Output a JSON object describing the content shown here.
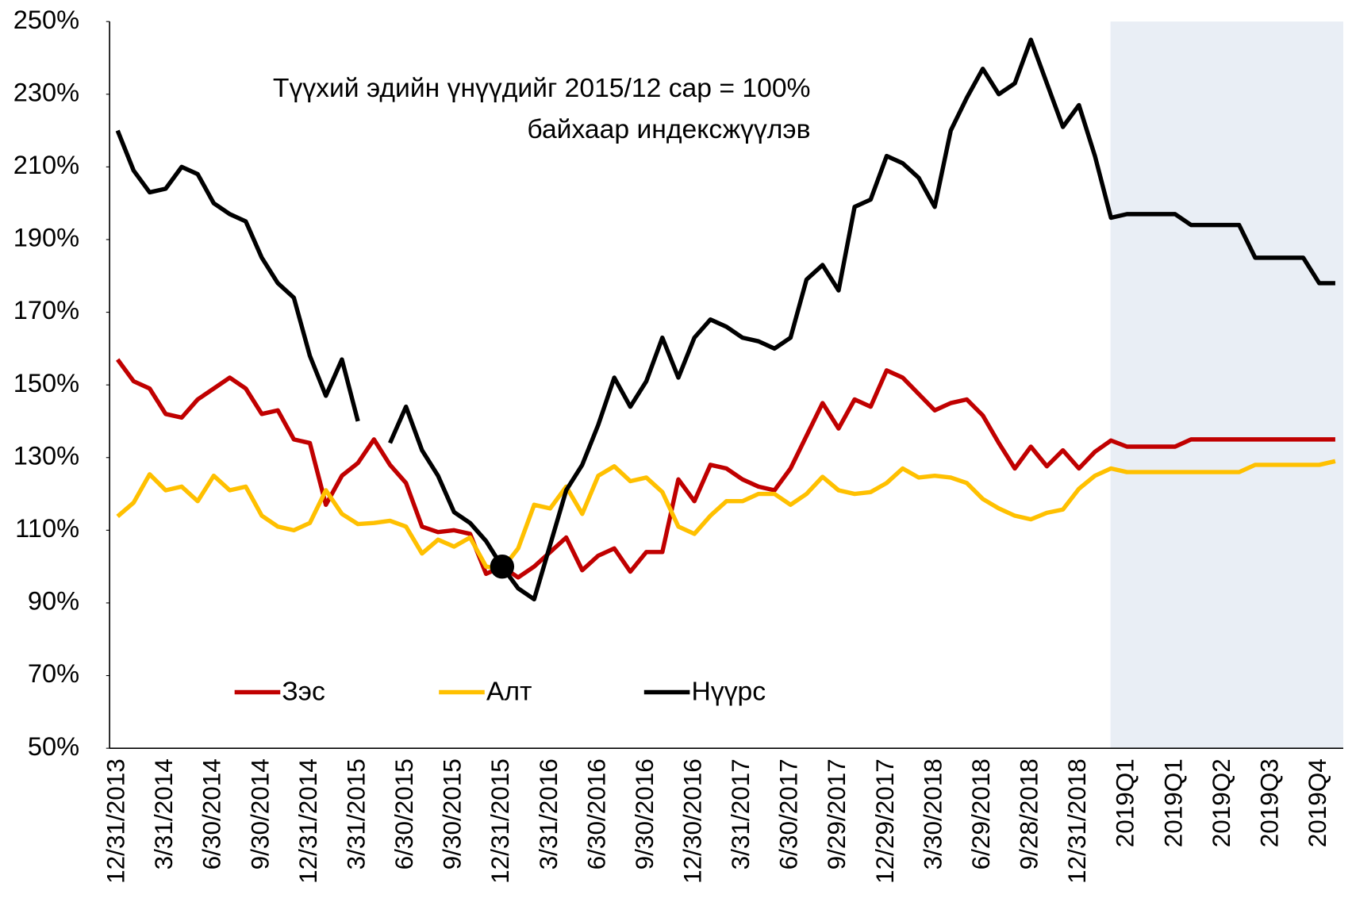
{
  "chart_data": {
    "type": "line",
    "annotation": [
      "Түүхий эдийн үнүүдийг 2015/12 сар = 100%",
      "байхаар индексжүүлэв"
    ],
    "categories": [
      "12/31/2013",
      null,
      null,
      "3/31/2014",
      null,
      null,
      "6/30/2014",
      null,
      null,
      "9/30/2014",
      null,
      null,
      "12/31/2014",
      null,
      null,
      "3/31/2015",
      null,
      null,
      "6/30/2015",
      null,
      null,
      "9/30/2015",
      null,
      null,
      "12/31/2015",
      null,
      null,
      "3/31/2016",
      null,
      null,
      "6/30/2016",
      null,
      null,
      "9/30/2016",
      null,
      null,
      "12/30/2016",
      null,
      null,
      "3/31/2017",
      null,
      null,
      "6/30/2017",
      null,
      null,
      "9/29/2017",
      null,
      null,
      "12/29/2017",
      null,
      null,
      "3/30/2018",
      null,
      null,
      "6/29/2018",
      null,
      null,
      "9/28/2018",
      null,
      null,
      "12/31/2018",
      null,
      null,
      "2019Q1",
      null,
      null,
      "2019Q1",
      null,
      null,
      "2019Q2",
      null,
      null,
      "2019Q3",
      null,
      null,
      "2019Q4",
      null
    ],
    "series": [
      {
        "name": "Зэс",
        "color": "#c00000",
        "values": [
          157,
          151,
          149,
          142,
          141,
          146,
          149,
          152,
          149,
          142,
          143,
          135,
          134,
          117,
          125,
          128.5,
          135,
          128,
          123,
          111,
          109.5,
          110,
          109,
          98,
          100,
          97,
          100,
          104,
          108,
          99,
          103,
          105,
          98.6,
          104,
          104,
          124,
          118,
          128,
          127,
          124,
          122,
          121,
          127,
          136,
          145,
          138,
          146,
          144,
          154,
          152,
          147.5,
          143,
          145,
          146,
          141.6,
          134,
          127,
          133,
          127.6,
          132,
          127,
          131.6,
          134.7,
          133,
          133,
          133,
          133,
          135,
          135,
          135,
          135,
          135,
          135,
          135,
          135,
          135,
          135
        ]
      },
      {
        "name": "Алт",
        "color": "#ffc000",
        "values": [
          113.8,
          117.6,
          125.4,
          121,
          122,
          118,
          125,
          121,
          122,
          114,
          111,
          110,
          112,
          121,
          114.5,
          111.7,
          112,
          112.6,
          111,
          103.6,
          107.4,
          105.5,
          108,
          100,
          99.3,
          105,
          117,
          116,
          122,
          114.5,
          125,
          127.6,
          123.5,
          124.5,
          120.5,
          111,
          109,
          114,
          118,
          118,
          120,
          120,
          117,
          120,
          124.7,
          121,
          120,
          120.5,
          123,
          127,
          124.5,
          125,
          124.5,
          123,
          118.6,
          116,
          114,
          113,
          114.8,
          115.7,
          121.4,
          125,
          127,
          126,
          126,
          126,
          126,
          126,
          126,
          126,
          126,
          128,
          128,
          128,
          128,
          128,
          129
        ]
      },
      {
        "name": "Нүүрс",
        "color": "#000000",
        "values": [
          220,
          209,
          203,
          204,
          210,
          208,
          200,
          197,
          195,
          185,
          178,
          174,
          158,
          147,
          157,
          140,
          null,
          134,
          144,
          132,
          125,
          115,
          112,
          107,
          100,
          94,
          91,
          106,
          121,
          128,
          139,
          152,
          144,
          151,
          163,
          152,
          163,
          168,
          166,
          163,
          162,
          160,
          163,
          179,
          183,
          176,
          199,
          201,
          213,
          211,
          207,
          199,
          220,
          229,
          237,
          230,
          233,
          245,
          233,
          221,
          227,
          213,
          196,
          197,
          197,
          197,
          197,
          194,
          194,
          194,
          194,
          185,
          185,
          185,
          185,
          178,
          178
        ]
      }
    ],
    "highlight_index": 24,
    "ylim": [
      50,
      250
    ],
    "yticks": [
      {
        "value": 50,
        "label": "50%"
      },
      {
        "value": 70,
        "label": "70%"
      },
      {
        "value": 90,
        "label": "90%"
      },
      {
        "value": 110,
        "label": "110%"
      },
      {
        "value": 130,
        "label": "130%"
      },
      {
        "value": 150,
        "label": "150%"
      },
      {
        "value": 170,
        "label": "170%"
      },
      {
        "value": 190,
        "label": "190%"
      },
      {
        "value": 210,
        "label": "210%"
      },
      {
        "value": 230,
        "label": "230%"
      },
      {
        "value": 250,
        "label": "250%"
      }
    ],
    "grid": false
  }
}
